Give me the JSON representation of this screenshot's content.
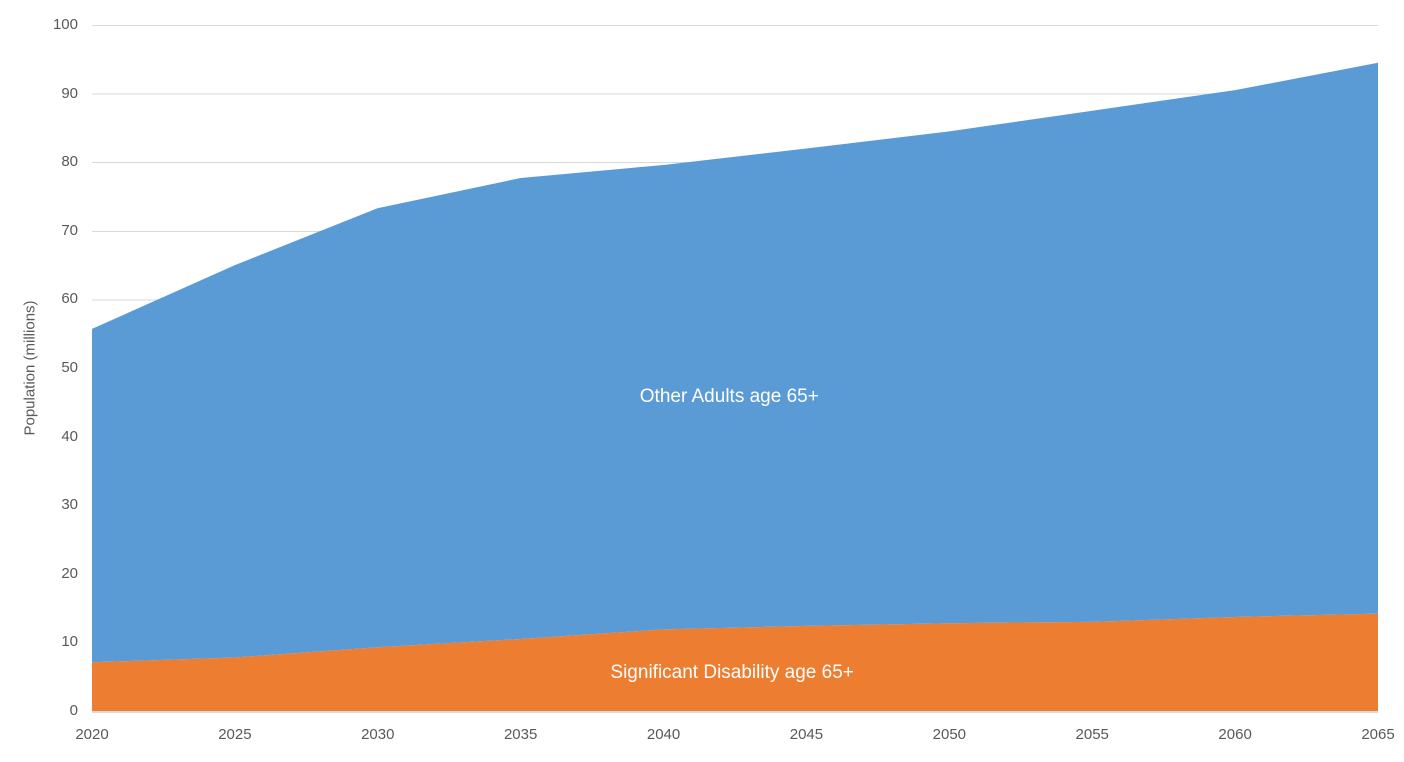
{
  "chart_data": {
    "type": "area",
    "stacked": true,
    "title": "",
    "xlabel": "",
    "ylabel": "Population (millions)",
    "xlim": [
      2020,
      2065
    ],
    "ylim": [
      0,
      100
    ],
    "grid": true,
    "legend_position": "none (series labeled inside areas)",
    "x": [
      2020,
      2025,
      2030,
      2035,
      2040,
      2045,
      2050,
      2055,
      2060,
      2065
    ],
    "x_tick_labels": [
      "2020",
      "2025",
      "2030",
      "2035",
      "2040",
      "2045",
      "2050",
      "2055",
      "2060",
      "2065"
    ],
    "y_ticks": [
      0,
      10,
      20,
      30,
      40,
      50,
      60,
      70,
      80,
      90,
      100
    ],
    "y_tick_labels": [
      "0",
      "10",
      "20",
      "30",
      "40",
      "50",
      "60",
      "70",
      "80",
      "90",
      "100"
    ],
    "series": [
      {
        "name": "Significant Disability age 65+",
        "color": "#ED7D31",
        "values": [
          7.1,
          7.8,
          9.3,
          10.5,
          11.9,
          12.4,
          12.8,
          13.0,
          13.7,
          14.2
        ],
        "label_anchor": {
          "x": 2042.4,
          "y": 5.5
        }
      },
      {
        "name": "Other Adults age 65+",
        "color": "#5B9BD5",
        "values": [
          48.6,
          57.2,
          64.0,
          67.2,
          67.7,
          69.6,
          71.7,
          74.5,
          76.8,
          80.3
        ],
        "label_anchor": {
          "x": 2042.3,
          "y": 45.8
        }
      }
    ],
    "stacked_totals": [
      55.7,
      65.0,
      73.3,
      77.7,
      79.6,
      82.0,
      84.5,
      87.5,
      90.5,
      94.5
    ]
  },
  "styles": {
    "background": "#FFFFFF",
    "gridline_color": "#D9D9D9",
    "axis_line_color": "#D9D9D9",
    "tick_label_color": "#595959",
    "series_label_color": "#FFFFFF"
  }
}
